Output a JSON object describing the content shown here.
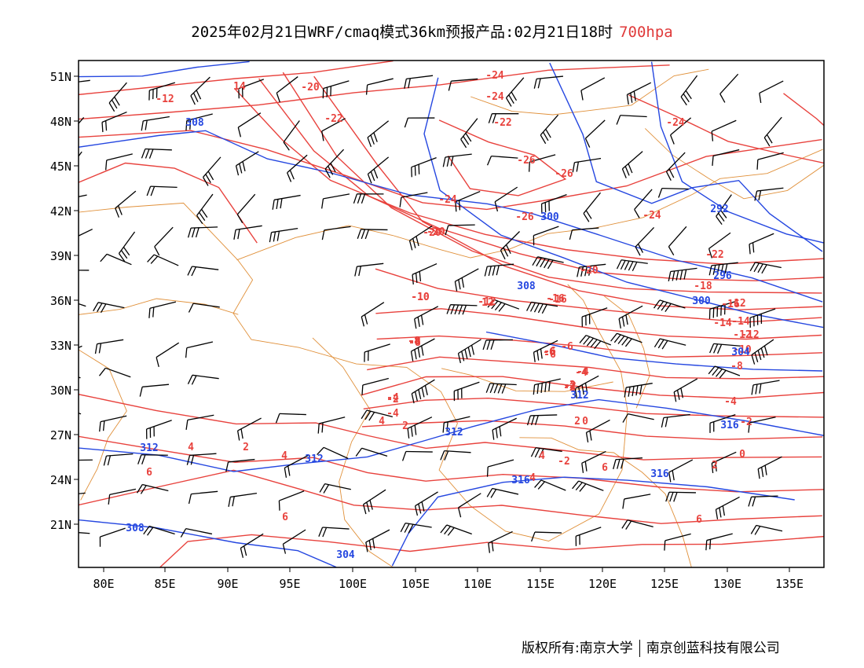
{
  "title": {
    "main": "2025年02月21日WRF/cmaq模式36km预报产品:02月21日18时",
    "level": "700hpa"
  },
  "axes": {
    "lat_ticks": [
      "51N",
      "48N",
      "45N",
      "42N",
      "39N",
      "36N",
      "33N",
      "30N",
      "27N",
      "24N",
      "21N"
    ],
    "lon_ticks": [
      "80E",
      "85E",
      "90E",
      "95E",
      "100E",
      "105E",
      "110E",
      "115E",
      "120E",
      "125E",
      "130E",
      "135E"
    ]
  },
  "colors": {
    "temperature": "#e8423d",
    "height": "#2547e0",
    "border": "#e0903a",
    "wind": "#000000",
    "label_red": "#e8423d",
    "label_blue": "#2547e0"
  },
  "temp_labels": [
    "-20",
    "-22",
    "-24",
    "-24",
    "-22",
    "-12",
    "-24",
    "-26",
    "-26",
    "-24",
    "-20",
    "-26",
    "-24",
    "-22",
    "-20",
    "-18",
    "-16",
    "-14",
    "-12",
    "-10",
    "-8",
    "-6",
    "-4",
    "-2",
    "-10",
    "-8",
    "-6",
    "-4",
    "-2",
    "0",
    "2",
    "4",
    "6",
    "-4",
    "-2",
    "4",
    "6",
    "2",
    "4",
    "2",
    "4",
    "6",
    "2",
    "-12",
    "-16",
    "-14",
    "-12",
    "-10",
    "-8",
    "-6",
    "-4",
    "-2",
    "0",
    "-2",
    "4",
    "6",
    "-20",
    "-16",
    "-12",
    "-8",
    "-6",
    "-4",
    "-2",
    "14",
    "12"
  ],
  "height_labels": [
    "308",
    "300",
    "292",
    "296",
    "308",
    "300",
    "304",
    "312",
    "312",
    "312",
    "312",
    "316",
    "316",
    "316",
    "304",
    "308"
  ],
  "footer": {
    "left": "版权所有:南京大学",
    "right": "南京创蓝科技有限公司"
  }
}
